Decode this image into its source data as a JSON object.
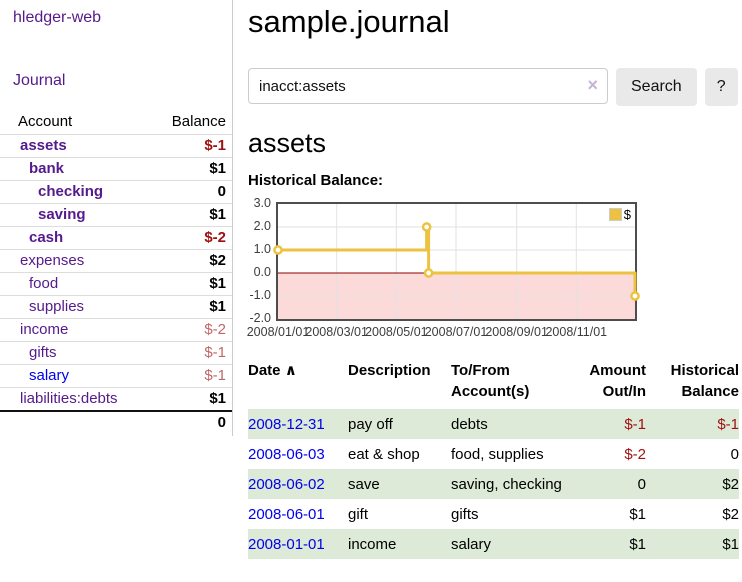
{
  "app": {
    "brand": "hledger-web",
    "nav_journal": "Journal"
  },
  "sidebar": {
    "table_headers": {
      "account": "Account",
      "balance": "Balance"
    },
    "accounts": [
      {
        "name": "assets",
        "balance": "$-1",
        "indent": 0,
        "bold": true,
        "color": "purple",
        "balance_style": "neg-strong"
      },
      {
        "name": "bank",
        "balance": "$1",
        "indent": 1,
        "bold": true,
        "color": "purple",
        "balance_style": "pos"
      },
      {
        "name": "checking",
        "balance": "0",
        "indent": 2,
        "bold": true,
        "color": "purple",
        "balance_style": "pos"
      },
      {
        "name": "saving",
        "balance": "$1",
        "indent": 2,
        "bold": true,
        "color": "purple",
        "balance_style": "pos"
      },
      {
        "name": "cash",
        "balance": "$-2",
        "indent": 1,
        "bold": true,
        "color": "purple",
        "balance_style": "neg-strong"
      },
      {
        "name": "expenses",
        "balance": "$2",
        "indent": 0,
        "bold": false,
        "color": "purple",
        "balance_style": "pos"
      },
      {
        "name": "food",
        "balance": "$1",
        "indent": 1,
        "bold": false,
        "color": "purple",
        "balance_style": "pos"
      },
      {
        "name": "supplies",
        "balance": "$1",
        "indent": 1,
        "bold": false,
        "color": "purple",
        "balance_style": "pos"
      },
      {
        "name": "income",
        "balance": "$-2",
        "indent": 0,
        "bold": false,
        "color": "purple",
        "balance_style": "neg-light"
      },
      {
        "name": "gifts",
        "balance": "$-1",
        "indent": 1,
        "bold": false,
        "color": "purple",
        "balance_style": "neg-light"
      },
      {
        "name": "salary",
        "balance": "$-1",
        "indent": 1,
        "bold": false,
        "color": "blue",
        "balance_style": "neg-light"
      },
      {
        "name": "liabilities:debts",
        "balance": "$1",
        "indent": 0,
        "bold": false,
        "color": "purple",
        "balance_style": "pos"
      }
    ],
    "total": "0"
  },
  "header": {
    "title": "sample.journal"
  },
  "search": {
    "query": "inacct:assets",
    "clear_icon": "×",
    "search_label": "Search",
    "help_label": "?"
  },
  "report": {
    "account_title": "assets",
    "chart_label": "Historical Balance:"
  },
  "chart_data": {
    "type": "line",
    "step": true,
    "title": "Historical Balance:",
    "series": [
      {
        "name": "$",
        "color": "#edc240",
        "points": [
          {
            "x": "2008-01-01",
            "y": 1
          },
          {
            "x": "2008-06-01",
            "y": 2
          },
          {
            "x": "2008-06-03",
            "y": 0
          },
          {
            "x": "2008-12-31",
            "y": -1
          }
        ]
      }
    ],
    "x_range": [
      "2008-01-01",
      "2008-12-31"
    ],
    "ylim": [
      -2,
      3
    ],
    "y_ticks": [
      "3.0",
      "2.0",
      "1.0",
      "0.0",
      "-1.0",
      "-2.0"
    ],
    "x_ticks": [
      "2008/01/01",
      "2008/03/01",
      "2008/05/01",
      "2008/07/01",
      "2008/09/01",
      "2008/11/01"
    ],
    "legend": "$",
    "legend_position": "top-right",
    "grid": true,
    "negative_region_fill": "#fcdada",
    "zero_line_color": "#8b0000"
  },
  "transactions": {
    "headers": [
      {
        "label": "Date",
        "glyph": "∧",
        "align": "left",
        "sortable": true
      },
      {
        "label": "Description",
        "align": "left"
      },
      {
        "label": "To/From\nAccount(s)",
        "align": "left"
      },
      {
        "label": "Amount\nOut/In",
        "align": "right"
      },
      {
        "label": "Historical\nBalance",
        "align": "right"
      }
    ],
    "rows": [
      {
        "date": "2008-12-31",
        "description": "pay off",
        "accounts": "debts",
        "amount": "$-1",
        "balance": "$-1"
      },
      {
        "date": "2008-06-03",
        "description": "eat & shop",
        "accounts": "food, supplies",
        "amount": "$-2",
        "balance": "0"
      },
      {
        "date": "2008-06-02",
        "description": "save",
        "accounts": "saving, checking",
        "amount": "0",
        "balance": "$2"
      },
      {
        "date": "2008-06-01",
        "description": "gift",
        "accounts": "gifts",
        "amount": "$1",
        "balance": "$2"
      },
      {
        "date": "2008-01-01",
        "description": "income",
        "accounts": "salary",
        "amount": "$1",
        "balance": "$1"
      }
    ]
  },
  "colors": {
    "link_purple": "#551a8b",
    "link_blue": "#0000ee",
    "negative_strong": "#9e1010",
    "negative_light": "#c06868",
    "row_stripe_green": "#dcead7",
    "button_gray": "#e9e9e9",
    "chart_line_gold": "#edc240",
    "chart_negative_fill": "#fcdada",
    "chart_zero_line": "#8b0000",
    "chart_border": "#4d4d4d"
  }
}
